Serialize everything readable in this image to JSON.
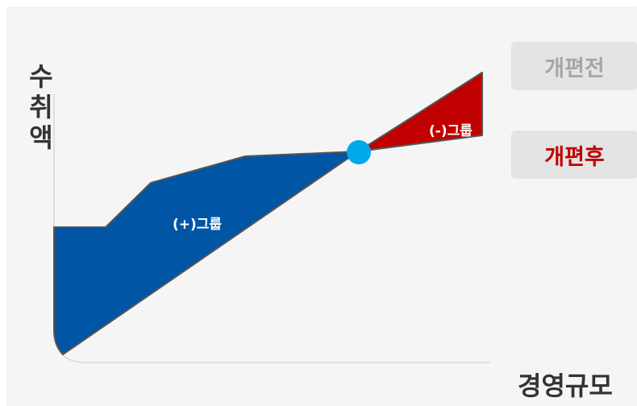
{
  "axes": {
    "y_label_chars": [
      "수",
      "취",
      "액"
    ],
    "x_label": "경영규모"
  },
  "legend": {
    "before": "개편전",
    "after": "개편후"
  },
  "regions": {
    "plus_group": "(+)그룹",
    "minus_group": "(-)그룹"
  },
  "colors": {
    "plus_group": "#0055a5",
    "minus_group": "#c00000",
    "intersection": "#00a9e8",
    "after_text": "#c00000",
    "before_text": "#a6a6a6"
  }
}
